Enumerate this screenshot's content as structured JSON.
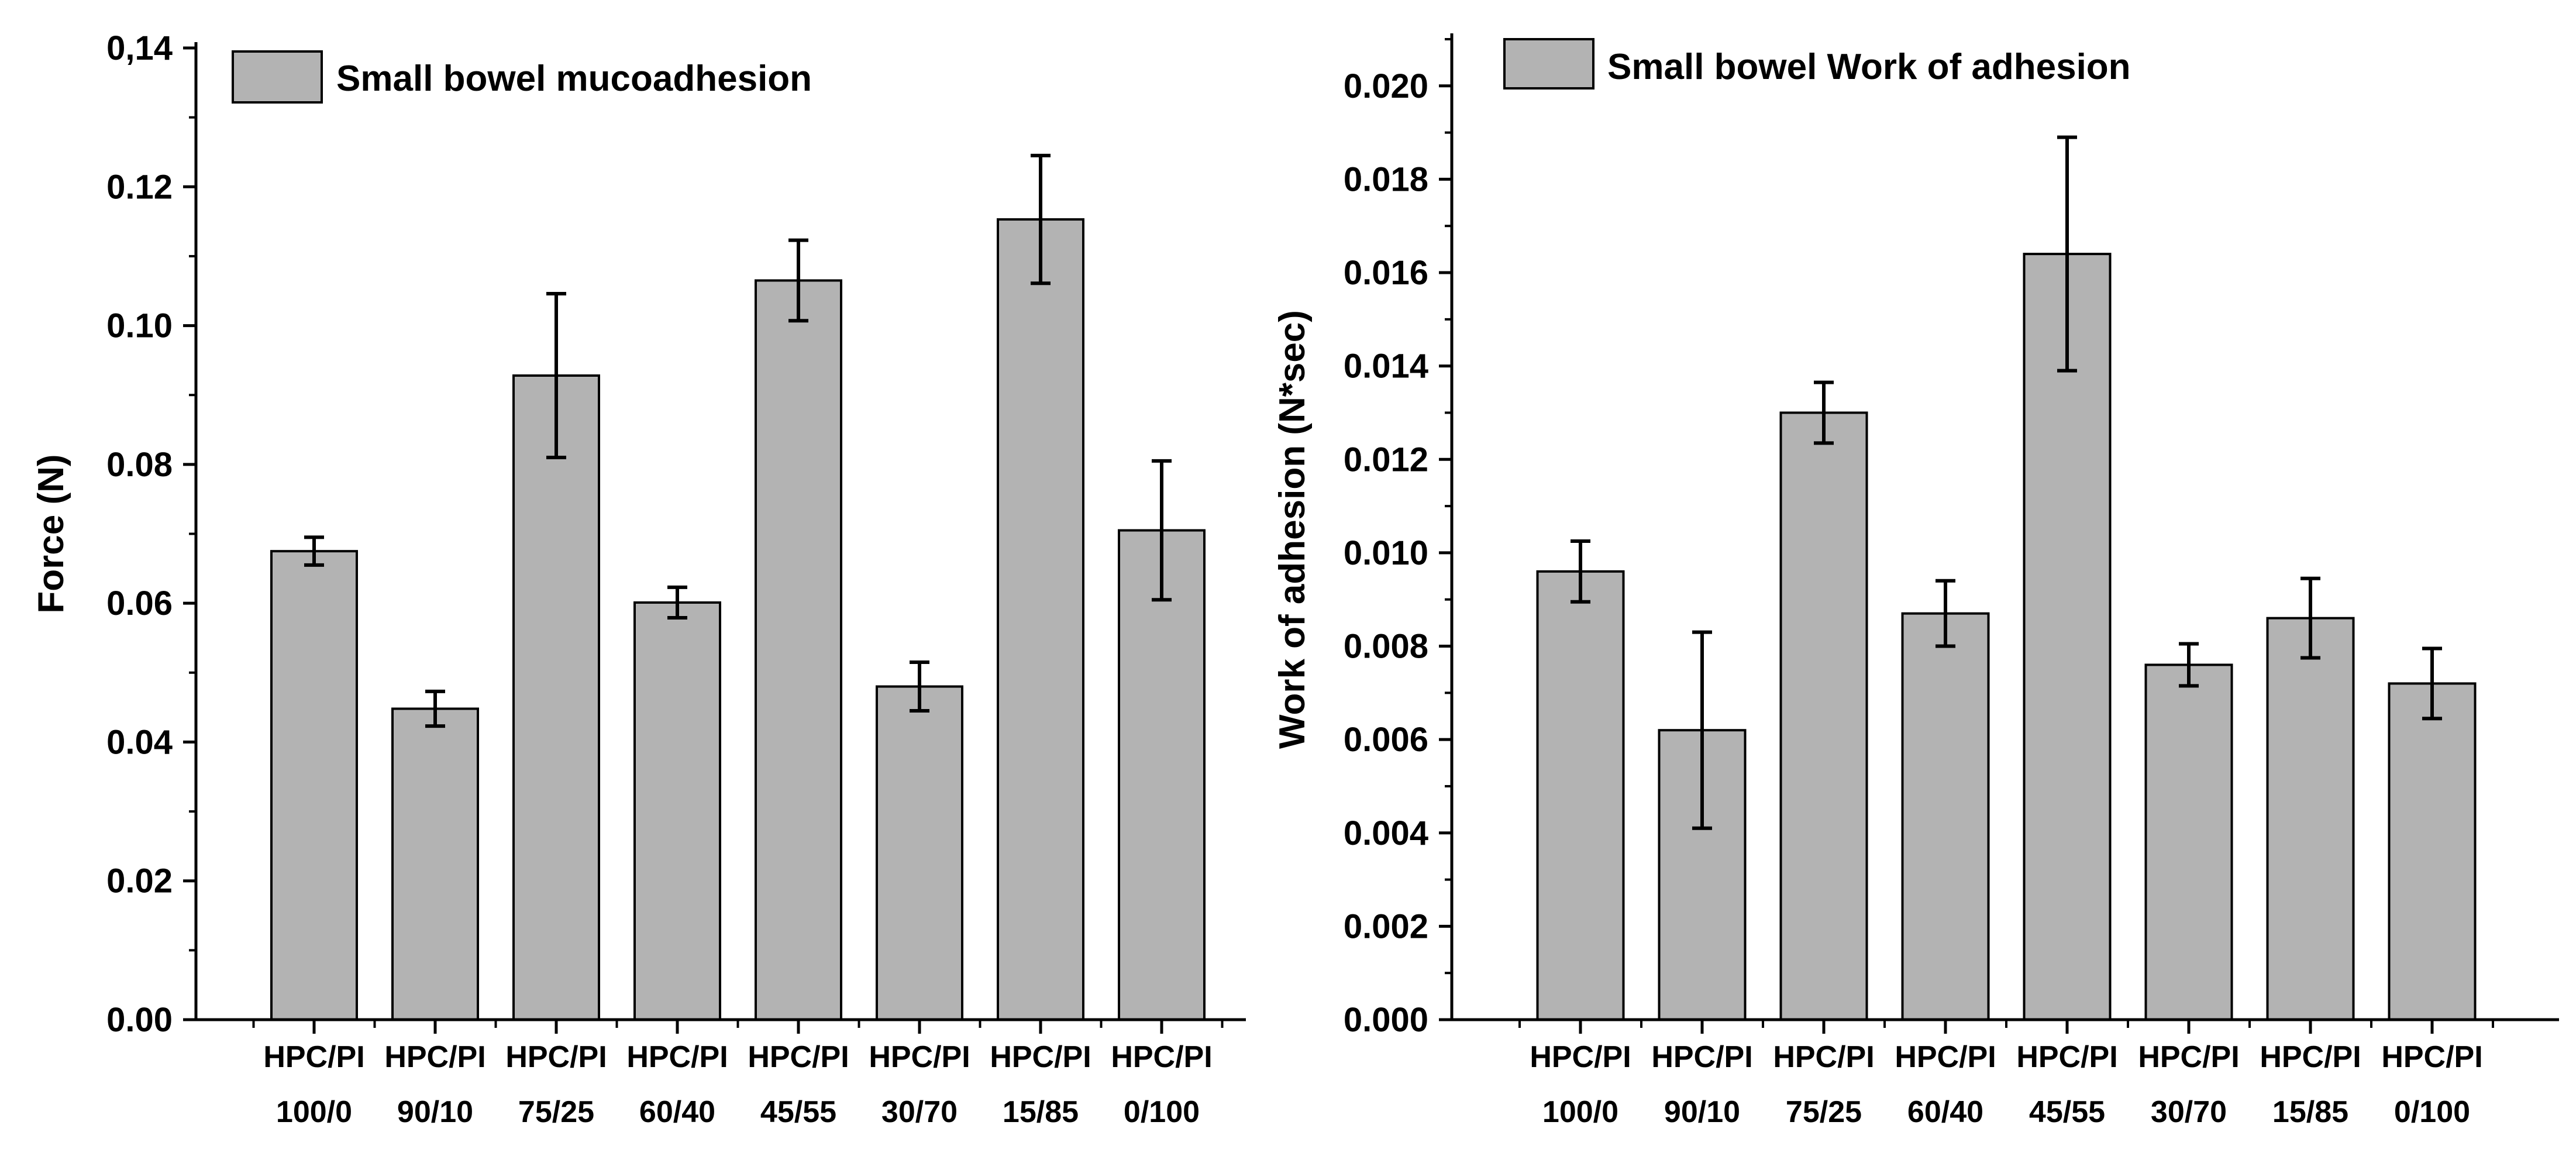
{
  "chart_data": [
    {
      "type": "bar",
      "title": "",
      "legend": {
        "label": "Small bowel mucoadhesion",
        "placement": "top-left"
      },
      "xlabel": "",
      "ylabel": "Force (N)",
      "ylim": [
        0,
        0.14
      ],
      "yticks": [
        {
          "v": 0.0,
          "label": "0.00"
        },
        {
          "v": 0.02,
          "label": "0.02"
        },
        {
          "v": 0.04,
          "label": "0.04"
        },
        {
          "v": 0.06,
          "label": "0.06"
        },
        {
          "v": 0.08,
          "label": "0.08"
        },
        {
          "v": 0.1,
          "label": "0.10"
        },
        {
          "v": 0.12,
          "label": "0.12"
        },
        {
          "v": 0.14,
          "label": "0,14"
        }
      ],
      "categories": [
        [
          "HPC/PI",
          "100/0"
        ],
        [
          "HPC/PI",
          "90/10"
        ],
        [
          "HPC/PI",
          "75/25"
        ],
        [
          "HPC/PI",
          "60/40"
        ],
        [
          "HPC/PI",
          "45/55"
        ],
        [
          "HPC/PI",
          "30/70"
        ],
        [
          "HPC/PI",
          "15/85"
        ],
        [
          "HPC/PI",
          "0/100"
        ]
      ],
      "values": [
        0.0675,
        0.0448,
        0.0928,
        0.0601,
        0.1065,
        0.048,
        0.1153,
        0.0705
      ],
      "errors": [
        0.002,
        0.0025,
        0.0118,
        0.0022,
        0.0058,
        0.0035,
        0.0092,
        0.01
      ],
      "bar_color": "#b3b3b3"
    },
    {
      "type": "bar",
      "title": "",
      "legend": {
        "label": "Small bowel Work of adhesion",
        "placement": "top-left"
      },
      "xlabel": "",
      "ylabel": "Work of adhesion (N*sec)",
      "ylim": [
        0,
        0.021
      ],
      "yticks": [
        {
          "v": 0.0,
          "label": "0.000"
        },
        {
          "v": 0.002,
          "label": "0.002"
        },
        {
          "v": 0.004,
          "label": "0.004"
        },
        {
          "v": 0.006,
          "label": "0.006"
        },
        {
          "v": 0.008,
          "label": "0.008"
        },
        {
          "v": 0.01,
          "label": "0.010"
        },
        {
          "v": 0.012,
          "label": "0.012"
        },
        {
          "v": 0.014,
          "label": "0.014"
        },
        {
          "v": 0.016,
          "label": "0.016"
        },
        {
          "v": 0.018,
          "label": "0.018"
        },
        {
          "v": 0.02,
          "label": "0.020"
        }
      ],
      "categories": [
        [
          "HPC/PI",
          "100/0"
        ],
        [
          "HPC/PI",
          "90/10"
        ],
        [
          "HPC/PI",
          "75/25"
        ],
        [
          "HPC/PI",
          "60/40"
        ],
        [
          "HPC/PI",
          "45/55"
        ],
        [
          "HPC/PI",
          "30/70"
        ],
        [
          "HPC/PI",
          "15/85"
        ],
        [
          "HPC/PI",
          "0/100"
        ]
      ],
      "values": [
        0.0096,
        0.0062,
        0.013,
        0.0087,
        0.0164,
        0.0076,
        0.0086,
        0.0072
      ],
      "errors": [
        0.00065,
        0.0021,
        0.00065,
        0.0007,
        0.0025,
        0.00045,
        0.00085,
        0.00075
      ],
      "bar_color": "#b3b3b3"
    }
  ]
}
